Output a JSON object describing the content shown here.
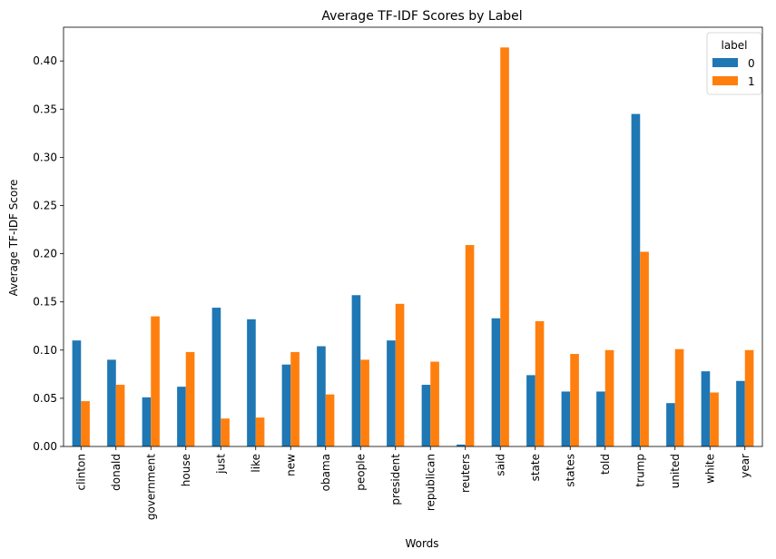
{
  "chart_data": {
    "type": "bar",
    "title": "Average TF-IDF Scores by Label",
    "xlabel": "Words",
    "ylabel": "Average TF-IDF Score",
    "ylim": [
      0,
      0.435
    ],
    "yticks": [
      "0.00",
      "0.05",
      "0.10",
      "0.15",
      "0.20",
      "0.25",
      "0.30",
      "0.35",
      "0.40"
    ],
    "categories": [
      "clinton",
      "donald",
      "government",
      "house",
      "just",
      "like",
      "new",
      "obama",
      "people",
      "president",
      "republican",
      "reuters",
      "said",
      "state",
      "states",
      "told",
      "trump",
      "united",
      "white",
      "year"
    ],
    "legend_title": "label",
    "legend_position": "top-right",
    "grid": false,
    "series": [
      {
        "name": "0",
        "color": "#1f77b4",
        "values": [
          0.11,
          0.09,
          0.051,
          0.062,
          0.144,
          0.132,
          0.085,
          0.104,
          0.157,
          0.11,
          0.064,
          0.002,
          0.133,
          0.074,
          0.057,
          0.057,
          0.345,
          0.045,
          0.078,
          0.068
        ]
      },
      {
        "name": "1",
        "color": "#ff7f0e",
        "values": [
          0.047,
          0.064,
          0.135,
          0.098,
          0.029,
          0.03,
          0.098,
          0.054,
          0.09,
          0.148,
          0.088,
          0.209,
          0.414,
          0.13,
          0.096,
          0.1,
          0.202,
          0.101,
          0.056,
          0.1
        ]
      }
    ]
  }
}
